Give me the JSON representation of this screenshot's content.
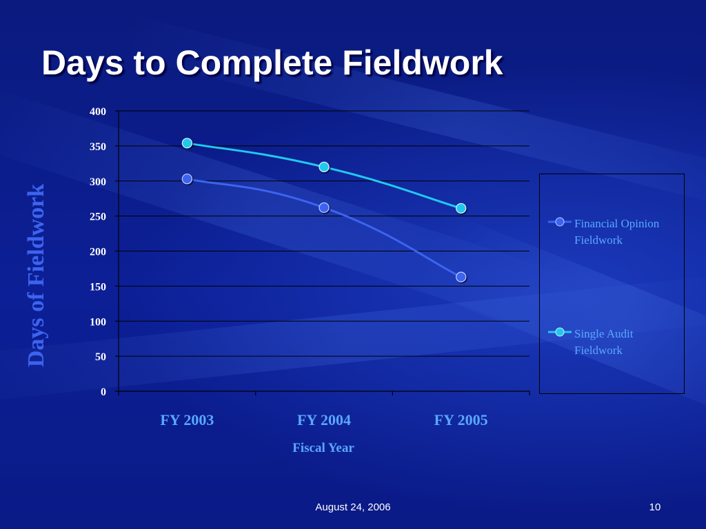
{
  "slide": {
    "title": "Days to Complete Fieldwork",
    "footer_date": "August 24, 2006",
    "page_number": "10"
  },
  "colors": {
    "background": "#0c1f96",
    "financial_opinion": "#3c64f0",
    "single_audit": "#22c8f0",
    "label_text": "#5aa8ff",
    "tick_text": "#ffffff",
    "axis_title": "#3c64f0"
  },
  "chart_data": {
    "type": "line",
    "categories": [
      "FY 2003",
      "FY 2004",
      "FY 2005"
    ],
    "series": [
      {
        "name": "Financial Opinion Fieldwork",
        "values": [
          303,
          262,
          163
        ]
      },
      {
        "name": "Single Audit Fieldwork",
        "values": [
          354,
          320,
          261
        ]
      }
    ],
    "xlabel": "Fiscal Year",
    "ylabel": "Days of Fieldwork",
    "ylim": [
      0,
      400
    ],
    "yticks": [
      "0",
      "50",
      "100",
      "150",
      "200",
      "250",
      "300",
      "350",
      "400"
    ],
    "grid": true,
    "smooth": true,
    "legend_position": "right"
  },
  "legend": {
    "items": [
      {
        "line1": "Financial Opinion",
        "line2": "Fieldwork"
      },
      {
        "line1": "Single Audit",
        "line2": "Fieldwork"
      }
    ]
  }
}
